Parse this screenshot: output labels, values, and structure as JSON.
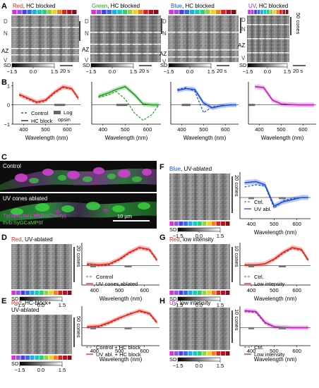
{
  "figure": {
    "panelA": {
      "letter": "A",
      "titles": [
        {
          "prefix": "Red",
          "rest": ", HC blocked",
          "color": "#e3271e"
        },
        {
          "prefix": "Green",
          "rest": ", HC blocked",
          "color": "#1f9e1f"
        },
        {
          "prefix": "Blue",
          "rest": ", HC blocked",
          "color": "#1e4fd8"
        },
        {
          "prefix": "UV",
          "rest": ", HC blocked",
          "color": "#b51eb5"
        }
      ],
      "zone_labels": [
        "D",
        "N",
        "AZ",
        "V"
      ],
      "sd_label": "SD",
      "sd_ticks": [
        "-1.5",
        "0.0",
        "1.5"
      ],
      "time_bar": "20 s",
      "cones_scale": "50 cones"
    },
    "panelB": {
      "letter": "B",
      "xlabel": "Wavelength (nm)",
      "xticks": [
        "400",
        "500",
        "600"
      ],
      "yticks": [
        "1",
        "0",
        "-1"
      ],
      "legend": {
        "control": "Control",
        "hc_block": "HC block",
        "log_opsin": "Log\nopsin"
      }
    },
    "panelC": {
      "letter": "C",
      "control_label": "Control",
      "ablated_label": "UV cones ablated",
      "scale": "10 µm",
      "transgene1": "Tg(opn1sw1:nfsBmCherry)",
      "transgene2": "thrb:SyGCaMP6f"
    },
    "panelD": {
      "letter": "D",
      "title_prefix": "Red",
      "title_rest": ", UV-ablated",
      "cones": "20 cones",
      "legend": [
        "Control",
        "UV cones ablated"
      ]
    },
    "panelE": {
      "letter": "E",
      "title_prefix": "Red",
      "title_rest": ", HC-block+",
      "title_line2": "UV-ablated",
      "cones": "50 cones",
      "legend": [
        "Control + HC block",
        "UV abl. + HC block"
      ]
    },
    "panelF": {
      "letter": "F",
      "title_prefix": "Blue",
      "title_rest": ", UV-ablated",
      "cones": "20 cones",
      "legend": [
        "Ctrl.",
        "UV abl."
      ]
    },
    "panelG": {
      "letter": "G",
      "title_prefix": "Red",
      "title_rest": ", low intensity",
      "cones": "10 cones",
      "legend": [
        "Ctrl.",
        "Low intensity"
      ]
    },
    "panelH": {
      "letter": "H",
      "title_prefix": "UV",
      "title_rest": ", low intensity",
      "cones": "10 cones",
      "legend": [
        "Ctrl.",
        "Low intensity"
      ]
    },
    "shared": {
      "sd_label": "SD",
      "sd_ticks": [
        "-1.5",
        "0.0",
        "1.5"
      ],
      "xlabel": "Wavelength (nm)",
      "xticks": [
        "400",
        "500",
        "600"
      ]
    },
    "stimulus_colors": [
      "#e02ce0",
      "#a04ee8",
      "#4a3ee6",
      "#2d6ff0",
      "#1ea8f0",
      "#16c9c0",
      "#2fd070",
      "#8ad83a",
      "#f0d020",
      "#f08020",
      "#e02020",
      "#b01020",
      "#801020"
    ]
  },
  "chart_data": [
    {
      "id": "B-red",
      "type": "line",
      "x": [
        380,
        420,
        460,
        500,
        540,
        580,
        620,
        650
      ],
      "series": [
        {
          "name": "HC block",
          "values": [
            0.55,
            0.35,
            0.15,
            0.25,
            0.65,
            0.95,
            0.85,
            0.35
          ]
        },
        {
          "name": "Control",
          "values": [
            0.5,
            0.3,
            0.1,
            0.2,
            0.6,
            0.9,
            0.82,
            0.3
          ]
        }
      ],
      "ylim": [
        -1,
        1.2
      ],
      "color": "#e3271e"
    },
    {
      "id": "B-green",
      "type": "line",
      "x": [
        380,
        420,
        460,
        500,
        540,
        580,
        620,
        650
      ],
      "series": [
        {
          "name": "HC block",
          "values": [
            0.45,
            0.6,
            0.8,
            0.95,
            0.55,
            0.05,
            0.0,
            0.0
          ]
        },
        {
          "name": "Control",
          "values": [
            0.4,
            0.5,
            0.7,
            0.3,
            -0.4,
            -0.8,
            -0.5,
            0.0
          ]
        }
      ],
      "ylim": [
        -1,
        1.2
      ],
      "color": "#1f9e1f"
    },
    {
      "id": "B-blue",
      "type": "line",
      "x": [
        380,
        420,
        460,
        500,
        540,
        580,
        620,
        650
      ],
      "series": [
        {
          "name": "HC block",
          "values": [
            0.75,
            0.85,
            0.8,
            0.1,
            -0.15,
            -0.05,
            0.0,
            0.0
          ]
        },
        {
          "name": "Control",
          "values": [
            0.8,
            0.9,
            0.7,
            -0.4,
            -0.1,
            -0.05,
            0.0,
            0.0
          ]
        }
      ],
      "ylim": [
        -1,
        1.2
      ],
      "color": "#1e4fd8"
    },
    {
      "id": "B-uv",
      "type": "line",
      "x": [
        380,
        420,
        460,
        500,
        540,
        580,
        620,
        650
      ],
      "series": [
        {
          "name": "HC block",
          "values": [
            0.95,
            0.9,
            0.25,
            0.05,
            0.02,
            0.0,
            0.0,
            0.0
          ]
        }
      ],
      "ylim": [
        -1,
        1.2
      ],
      "color": "#c01ec0"
    }
  ]
}
